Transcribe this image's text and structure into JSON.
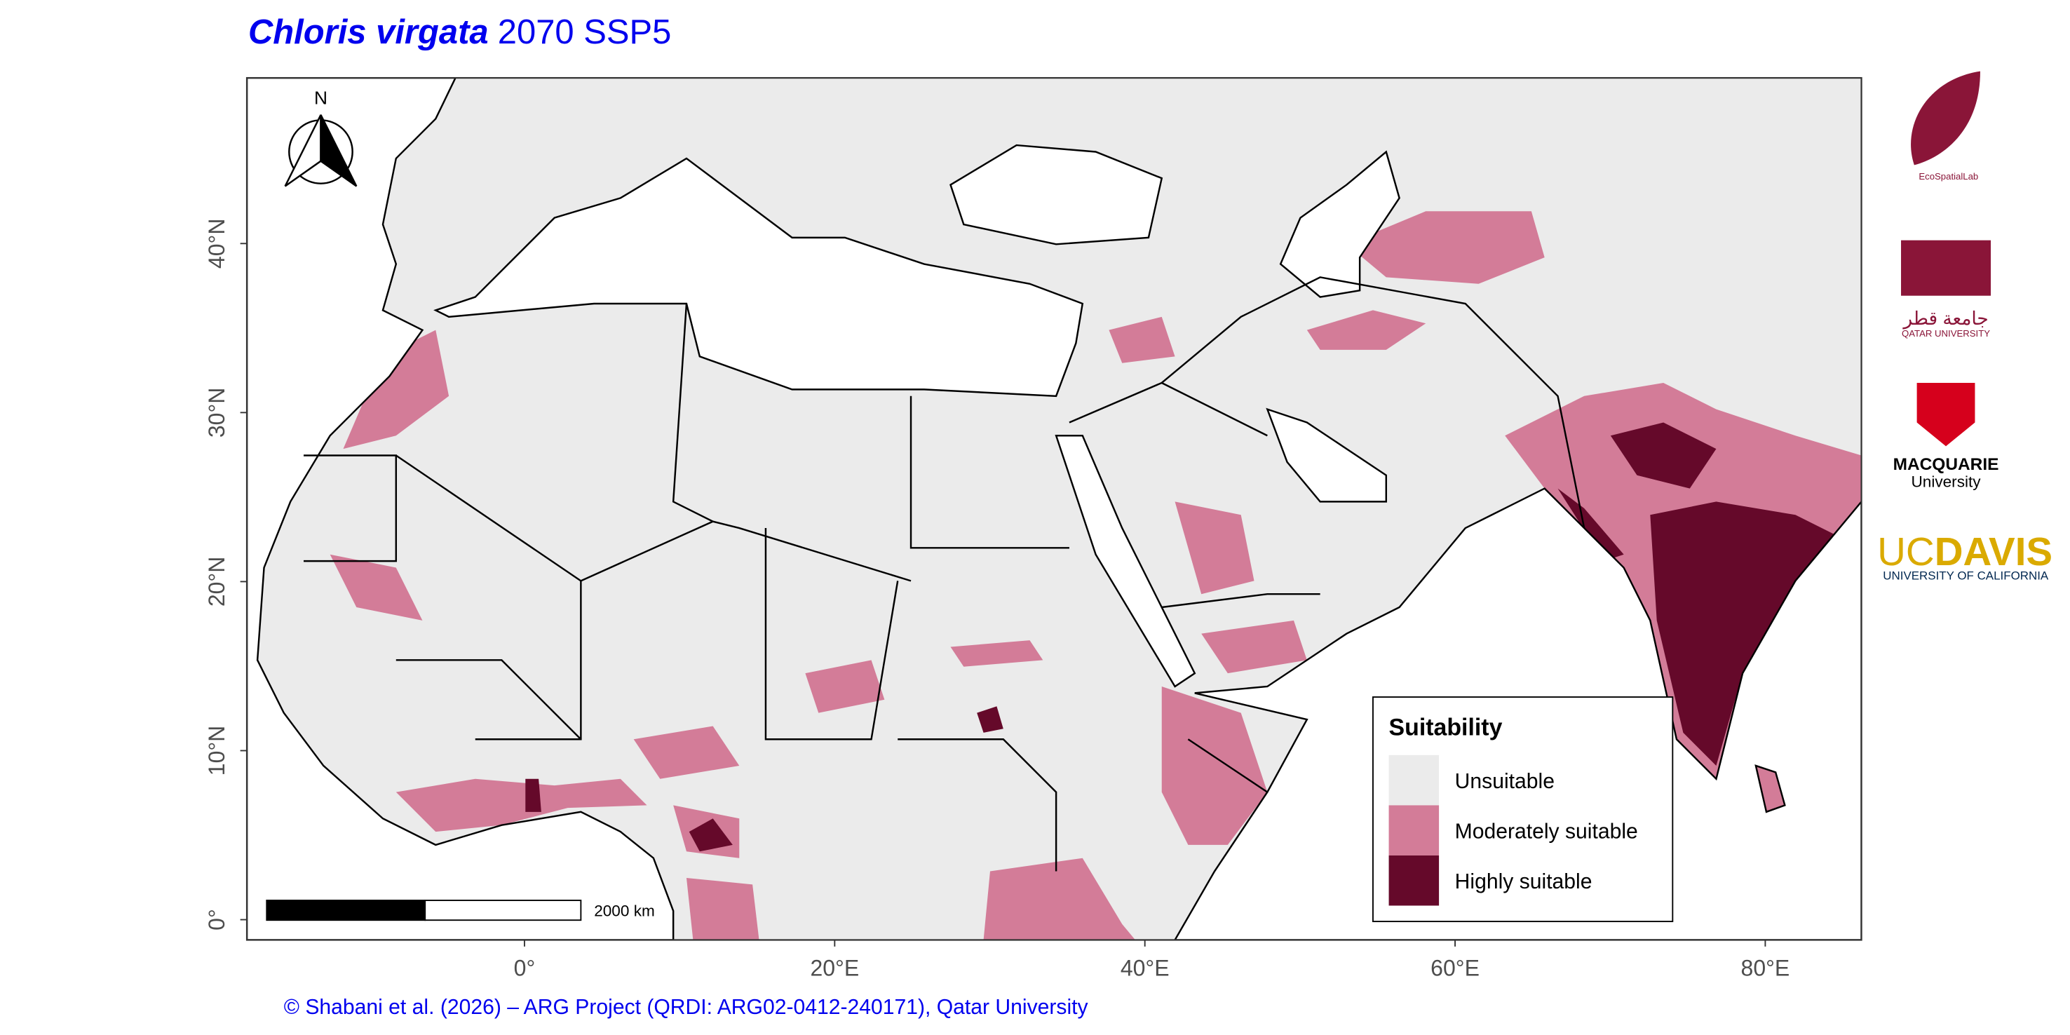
{
  "title": {
    "species": "Chloris virgata",
    "scenario": "2070 SSP5"
  },
  "map": {
    "xlim": [
      -17.9,
      86.2
    ],
    "ylim": [
      -1.2,
      49.8
    ],
    "xticks": [
      {
        "value": 0,
        "label": "0°"
      },
      {
        "value": 20,
        "label": "20°E"
      },
      {
        "value": 40,
        "label": "40°E"
      },
      {
        "value": 60,
        "label": "60°E"
      },
      {
        "value": 80,
        "label": "80°E"
      }
    ],
    "yticks": [
      {
        "value": 0,
        "label": "0°"
      },
      {
        "value": 10,
        "label": "10°N"
      },
      {
        "value": 20,
        "label": "20°N"
      },
      {
        "value": 30,
        "label": "30°N"
      },
      {
        "value": 40,
        "label": "40°N"
      }
    ]
  },
  "legend": {
    "title": "Suitability",
    "items": [
      {
        "label": "Unsuitable",
        "color": "#ebebeb"
      },
      {
        "label": "Moderately suitable",
        "color": "#d37c98"
      },
      {
        "label": "Highly suitable",
        "color": "#65092a"
      }
    ]
  },
  "north_arrow": {
    "label": "N"
  },
  "scale_bar": {
    "label": "2000 km"
  },
  "credit": "© Shabani et al. (2026) – ARG Project (QRDI: ARG02-0412-240171), Qatar University",
  "logos": {
    "ecospatial": "EcoSpatialLab",
    "qatar_arabic": "جامعة قطر",
    "qatar": "QATAR UNIVERSITY",
    "macquarie": "MACQUARIE",
    "macquarie_sub": "University",
    "ucdavis_uc": "UC",
    "ucdavis_davis": "DAVIS",
    "ucdavis_sub": "UNIVERSITY OF CALIFORNIA"
  }
}
